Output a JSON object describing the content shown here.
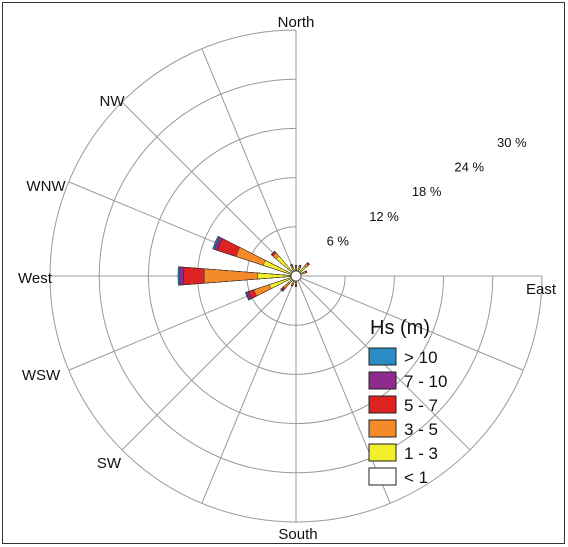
{
  "chart_data": {
    "type": "wind-rose",
    "legend_title": "Hs (m)",
    "directions": [
      "North",
      "NW",
      "WNW",
      "West",
      "WSW",
      "SW",
      "South",
      "East"
    ],
    "ring_labels": [
      "6 %",
      "12 %",
      "18 %",
      "24 %",
      "30 %"
    ],
    "radial_range": [
      0,
      30
    ],
    "legend_placement": "bottom-right",
    "bins": [
      {
        "label": "> 10",
        "color": "#2b8cc4"
      },
      {
        "label": "7 - 10",
        "color": "#8e2c8e"
      },
      {
        "label": "5 - 7",
        "color": "#dd2222"
      },
      {
        "label": "3 - 5",
        "color": "#f58a2a"
      },
      {
        "label": "1 - 3",
        "color": "#f2ee2a"
      },
      {
        "label": "< 1",
        "color": "#ffffff"
      }
    ],
    "series": [
      {
        "direction_deg": 270,
        "cumulative": [
          0.3,
          4.7,
          11.2,
          13.7,
          14.2,
          14.4
        ]
      },
      {
        "direction_deg": 292.5,
        "cumulative": [
          0.3,
          4.2,
          7.7,
          10.1,
          10.5,
          10.7
        ]
      },
      {
        "direction_deg": 247.5,
        "cumulative": [
          0.3,
          3.4,
          5.4,
          6.1,
          6.4,
          6.5
        ]
      },
      {
        "direction_deg": 225,
        "cumulative": [
          0.3,
          1.2,
          2.0,
          2.2,
          2.4,
          2.5
        ]
      },
      {
        "direction_deg": 315,
        "cumulative": [
          0.3,
          3.2,
          3.7,
          3.9,
          4.0,
          4.0
        ]
      },
      {
        "direction_deg": 337.5,
        "cumulative": [
          0.3,
          1.1,
          1.4,
          1.5,
          1.5,
          1.5
        ]
      },
      {
        "direction_deg": 0,
        "cumulative": [
          0.3,
          1.0,
          1.2,
          1.3,
          1.3,
          1.3
        ]
      },
      {
        "direction_deg": 22.5,
        "cumulative": [
          0.3,
          1.1,
          1.3,
          1.4,
          1.4,
          1.4
        ]
      },
      {
        "direction_deg": 45,
        "cumulative": [
          0.3,
          1.6,
          2.0,
          2.2,
          2.2,
          2.2
        ]
      },
      {
        "direction_deg": 67.5,
        "cumulative": [
          0.3,
          1.0,
          1.3,
          1.4,
          1.4,
          1.4
        ]
      },
      {
        "direction_deg": 202.5,
        "cumulative": [
          0.3,
          1.0,
          1.2,
          1.3,
          1.3,
          1.3
        ]
      },
      {
        "direction_deg": 180,
        "cumulative": [
          0.3,
          1.0,
          1.2,
          1.3,
          1.3,
          1.3
        ]
      }
    ]
  }
}
